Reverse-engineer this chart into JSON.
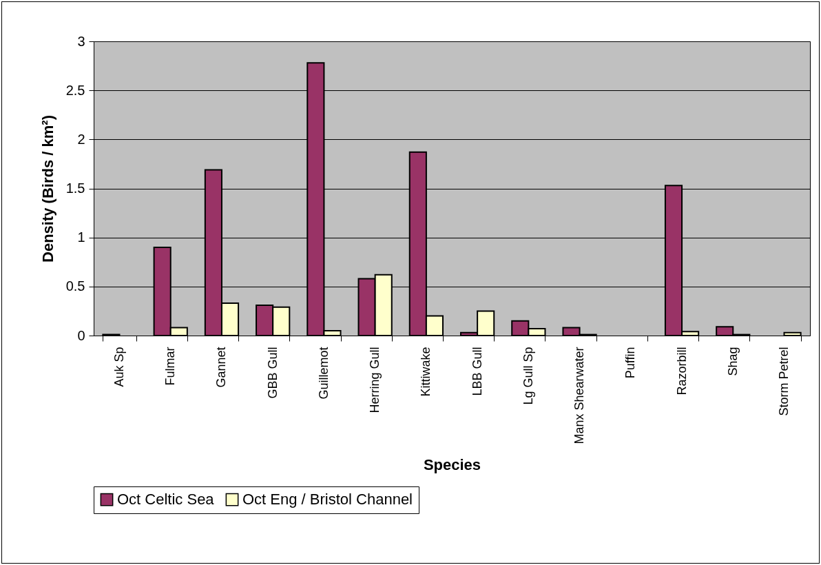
{
  "chart_data": {
    "type": "bar",
    "xlabel": "Species",
    "ylabel": "Density (Birds / km²)",
    "categories": [
      "Auk Sp",
      "Fulmar",
      "Gannet",
      "GBB Gull",
      "Guillemot",
      "Herring Gull",
      "Kittiwake",
      "LBB Gull",
      "Lg Gull Sp",
      "Manx Shearwater",
      "Puffin",
      "Razorbill",
      "Shag",
      "Storm Petrel"
    ],
    "series": [
      {
        "name": "Oct Celtic Sea",
        "color": "#993366",
        "values": [
          0.01,
          0.9,
          1.69,
          0.31,
          2.78,
          0.58,
          1.87,
          0.03,
          0.15,
          0.08,
          0,
          1.53,
          0.09,
          0
        ]
      },
      {
        "name": "Oct Eng / Bristol Channel",
        "color": "#ffffcc",
        "values": [
          0,
          0.08,
          0.33,
          0.29,
          0.05,
          0.62,
          0.2,
          0.25,
          0.07,
          0.01,
          0,
          0.04,
          0.01,
          0.03
        ]
      }
    ],
    "ylim": [
      0,
      3
    ],
    "yticks": [
      0,
      0.5,
      1,
      1.5,
      2,
      2.5,
      3
    ],
    "grid": "y",
    "legend": "bottom"
  }
}
